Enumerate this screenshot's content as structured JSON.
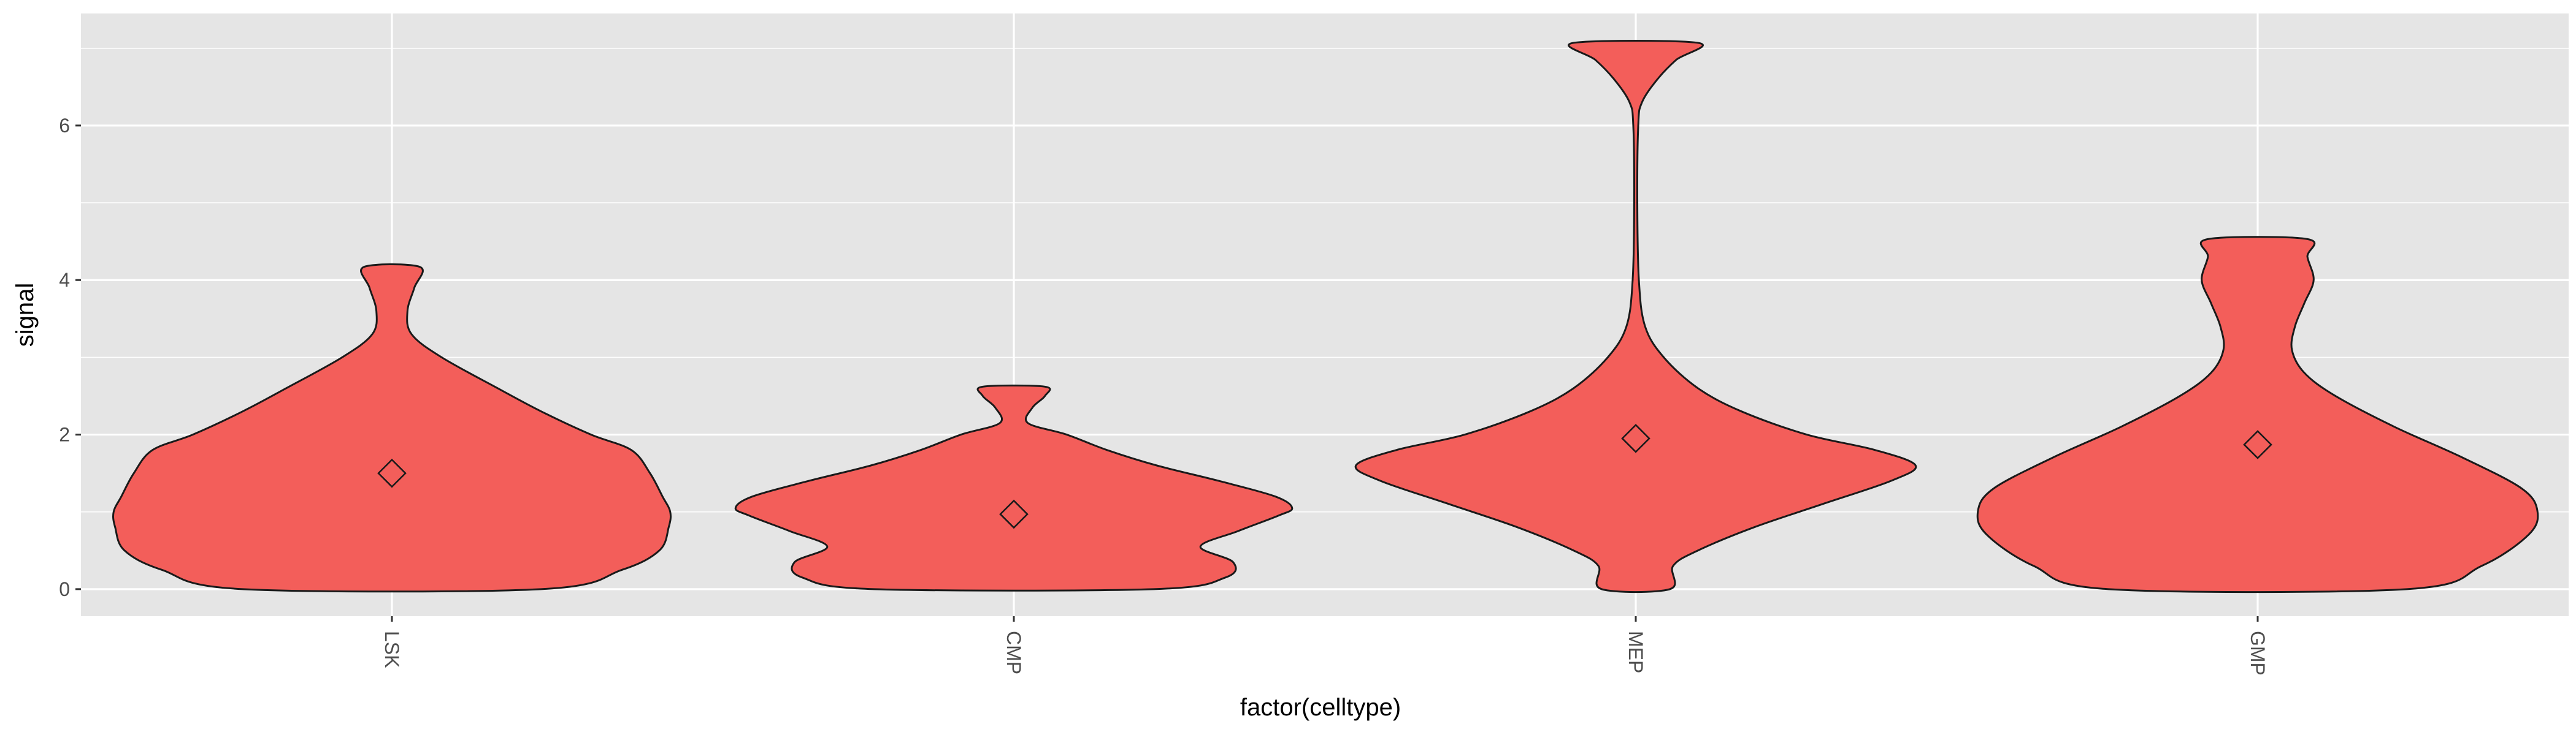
{
  "chart_data": {
    "type": "violin",
    "xlabel": "factor(celltype)",
    "ylabel": "signal",
    "ylim": [
      -0.35,
      7.45
    ],
    "yticks": [
      0,
      2,
      4,
      6
    ],
    "grid": true,
    "colors": {
      "fill": "#F35E5A",
      "panel": "#E5E5E5",
      "grid": "#FFFFFF",
      "outline": "#1a1a1a"
    },
    "categories": [
      "LSK",
      "CMP",
      "MEP",
      "GMP"
    ],
    "series": [
      {
        "category": "LSK",
        "min": 0,
        "max": 4.17,
        "mean": 1.5,
        "profile": [
          [
            0,
            0.48
          ],
          [
            0.25,
            0.74
          ],
          [
            0.5,
            0.86
          ],
          [
            0.8,
            0.89
          ],
          [
            1.0,
            0.895
          ],
          [
            1.2,
            0.87
          ],
          [
            1.5,
            0.83
          ],
          [
            1.8,
            0.77
          ],
          [
            2.0,
            0.64
          ],
          [
            2.3,
            0.48
          ],
          [
            2.6,
            0.34
          ],
          [
            3.0,
            0.16
          ],
          [
            3.3,
            0.063
          ],
          [
            3.6,
            0.05
          ],
          [
            3.9,
            0.072
          ],
          [
            4.17,
            0.09
          ]
        ]
      },
      {
        "category": "CMP",
        "min": 0,
        "max": 2.62,
        "mean": 0.97,
        "profile": [
          [
            0,
            0.45
          ],
          [
            0.15,
            0.68
          ],
          [
            0.35,
            0.705
          ],
          [
            0.55,
            0.6
          ],
          [
            0.75,
            0.72
          ],
          [
            0.95,
            0.85
          ],
          [
            1.05,
            0.895
          ],
          [
            1.2,
            0.84
          ],
          [
            1.4,
            0.66
          ],
          [
            1.6,
            0.46
          ],
          [
            1.8,
            0.3
          ],
          [
            2.0,
            0.17
          ],
          [
            2.15,
            0.045
          ],
          [
            2.35,
            0.06
          ],
          [
            2.5,
            0.1
          ],
          [
            2.62,
            0.1
          ]
        ]
      },
      {
        "category": "MEP",
        "min": 0,
        "max": 7.07,
        "mean": 1.95,
        "profile": [
          [
            0,
            0.11
          ],
          [
            0.3,
            0.12
          ],
          [
            0.5,
            0.2
          ],
          [
            0.8,
            0.38
          ],
          [
            1.1,
            0.6
          ],
          [
            1.4,
            0.82
          ],
          [
            1.6,
            0.9
          ],
          [
            1.8,
            0.77
          ],
          [
            2.0,
            0.55
          ],
          [
            2.3,
            0.34
          ],
          [
            2.6,
            0.2
          ],
          [
            3.0,
            0.09
          ],
          [
            3.4,
            0.03
          ],
          [
            4.0,
            0.01
          ],
          [
            5.0,
            0.005
          ],
          [
            6.0,
            0.008
          ],
          [
            6.3,
            0.02
          ],
          [
            6.6,
            0.07
          ],
          [
            6.85,
            0.13
          ],
          [
            7.07,
            0.2
          ]
        ]
      },
      {
        "category": "GMP",
        "min": 0,
        "max": 4.53,
        "mean": 1.87,
        "profile": [
          [
            0,
            0.48
          ],
          [
            0.3,
            0.72
          ],
          [
            0.7,
            0.87
          ],
          [
            1.0,
            0.9
          ],
          [
            1.3,
            0.85
          ],
          [
            1.7,
            0.66
          ],
          [
            2.1,
            0.44
          ],
          [
            2.5,
            0.25
          ],
          [
            2.8,
            0.15
          ],
          [
            3.1,
            0.11
          ],
          [
            3.4,
            0.12
          ],
          [
            3.7,
            0.15
          ],
          [
            4.0,
            0.18
          ],
          [
            4.3,
            0.16
          ],
          [
            4.53,
            0.16
          ]
        ]
      }
    ]
  }
}
